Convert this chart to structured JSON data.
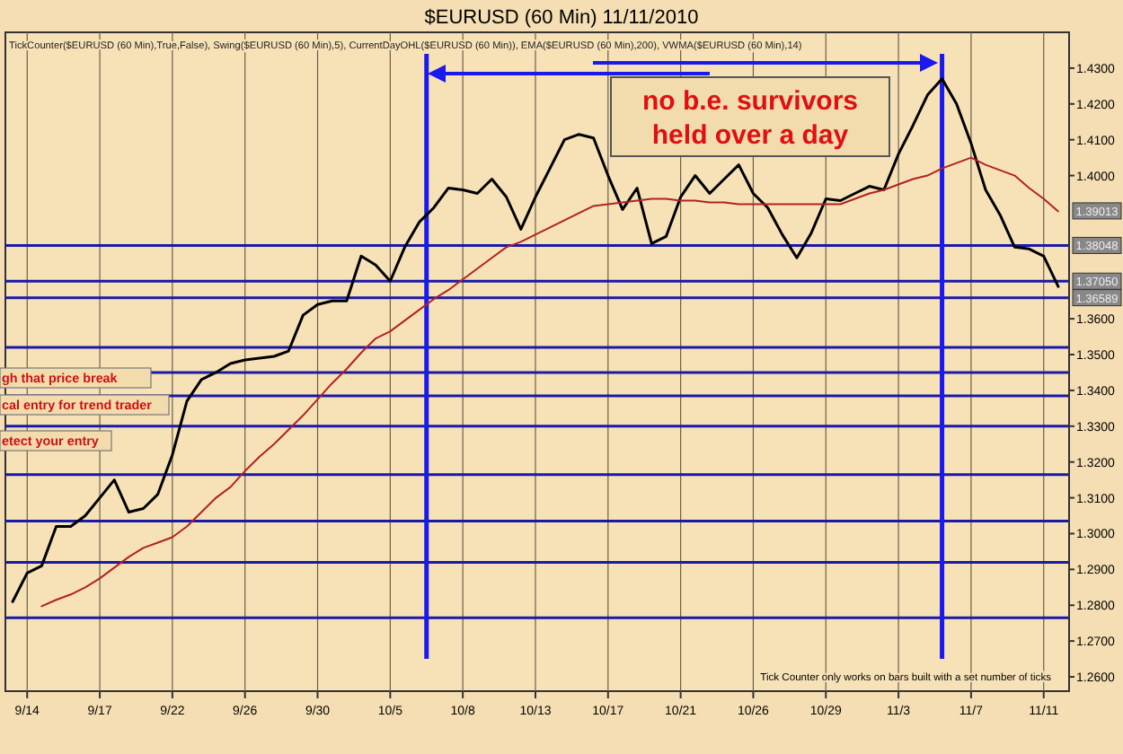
{
  "chart_data": {
    "type": "line",
    "title": "$EURUSD (60 Min)  11/11/2010",
    "subtitle": "TickCounter($EURUSD (60 Min),True,False), Swing($EURUSD (60 Min),5), CurrentDayOHL($EURUSD (60 Min)), EMA($EURUSD (60 Min),200), VWMA($EURUSD (60 Min),14)",
    "categories": [
      null,
      "9/14",
      null,
      null,
      null,
      null,
      "9/17",
      null,
      null,
      null,
      null,
      "9/22",
      null,
      null,
      null,
      null,
      "9/26",
      null,
      null,
      null,
      null,
      "9/30",
      null,
      null,
      null,
      null,
      "10/5",
      null,
      null,
      null,
      null,
      "10/8",
      null,
      null,
      null,
      null,
      "10/13",
      null,
      null,
      null,
      null,
      "10/17",
      null,
      null,
      null,
      null,
      "10/21",
      null,
      null,
      null,
      null,
      "10/26",
      null,
      null,
      null,
      null,
      "10/29",
      null,
      null,
      null,
      null,
      "11/3",
      null,
      null,
      null,
      null,
      "11/7",
      null,
      null,
      null,
      null,
      "11/11",
      null
    ],
    "series": [
      {
        "color": "#000000",
        "values": [
          1.281,
          1.289,
          1.291,
          1.302,
          1.302,
          1.305,
          1.31,
          1.315,
          1.306,
          1.307,
          1.311,
          1.322,
          1.337,
          1.343,
          1.345,
          1.3475,
          1.3485,
          1.349,
          1.3495,
          1.351,
          1.361,
          1.364,
          1.365,
          1.365,
          1.3775,
          1.375,
          1.3705,
          1.38,
          1.387,
          1.391,
          1.3965,
          1.396,
          1.395,
          1.399,
          1.394,
          1.385,
          1.394,
          1.402,
          1.41,
          1.4115,
          1.4105,
          1.4,
          1.3905,
          1.3965,
          1.381,
          1.383,
          1.394,
          1.4,
          1.395,
          1.399,
          1.403,
          1.395,
          1.391,
          1.3835,
          1.377,
          1.384,
          1.3935,
          1.393,
          1.395,
          1.397,
          1.396,
          1.406,
          1.414,
          1.4225,
          1.427,
          1.42,
          1.409,
          1.396,
          1.389,
          1.38,
          1.3795,
          1.3775,
          1.369
        ]
      },
      {
        "color": "#b22222",
        "values": [
          null,
          null,
          1.2797,
          1.2815,
          1.283,
          1.285,
          1.2875,
          1.2905,
          1.2935,
          1.296,
          1.2975,
          1.299,
          1.302,
          1.306,
          1.31,
          1.313,
          1.3175,
          1.3215,
          1.325,
          1.329,
          1.333,
          1.3375,
          1.342,
          1.346,
          1.3505,
          1.3545,
          1.3565,
          1.3595,
          1.3625,
          1.3655,
          1.368,
          1.371,
          1.374,
          1.377,
          1.38,
          1.3815,
          1.3835,
          1.3855,
          1.3875,
          1.3895,
          1.3915,
          1.392,
          1.3925,
          1.393,
          1.3935,
          1.3935,
          1.393,
          1.393,
          1.3925,
          1.3925,
          1.392,
          1.392,
          1.392,
          1.392,
          1.392,
          1.392,
          1.392,
          1.392,
          1.3935,
          1.395,
          1.396,
          1.3975,
          1.399,
          1.4,
          1.402,
          1.4035,
          1.405,
          1.403,
          1.4015,
          1.4,
          1.3965,
          1.3935,
          1.39
        ]
      }
    ],
    "ylim": [
      1.256,
      1.44
    ],
    "yticks": [
      {
        "value": 1.26,
        "label": "1.2600"
      },
      {
        "value": 1.27,
        "label": "1.2700"
      },
      {
        "value": 1.28,
        "label": "1.2800"
      },
      {
        "value": 1.29,
        "label": "1.2900"
      },
      {
        "value": 1.3,
        "label": "1.3000"
      },
      {
        "value": 1.31,
        "label": "1.3100"
      },
      {
        "value": 1.32,
        "label": "1.3200"
      },
      {
        "value": 1.33,
        "label": "1.3300"
      },
      {
        "value": 1.34,
        "label": "1.3400"
      },
      {
        "value": 1.35,
        "label": "1.3500"
      },
      {
        "value": 1.36,
        "label": "1.3600"
      },
      {
        "value": 1.4,
        "label": "1.4000"
      },
      {
        "value": 1.41,
        "label": "1.4100"
      },
      {
        "value": 1.42,
        "label": "1.4200"
      },
      {
        "value": 1.43,
        "label": "1.4300"
      }
    ],
    "ref_lines": [
      {
        "axis": "y",
        "value": 1.38048,
        "label": "1.38048",
        "color": "#1a1aa8"
      },
      {
        "axis": "y",
        "value": 1.3705,
        "label": "1.37050",
        "color": "#1a1aa8"
      },
      {
        "axis": "y",
        "value": 1.36589,
        "label": "1.36589",
        "color": "#1a1aa8"
      },
      {
        "axis": "y",
        "value": 1.352,
        "color": "#1a1aa8"
      },
      {
        "axis": "y",
        "value": 1.345,
        "color": "#1a1aa8"
      },
      {
        "axis": "y",
        "value": 1.3385,
        "color": "#1a1aa8"
      },
      {
        "axis": "y",
        "value": 1.33,
        "color": "#1a1aa8"
      },
      {
        "axis": "y",
        "value": 1.3165,
        "color": "#1a1aa8"
      },
      {
        "axis": "y",
        "value": 1.3035,
        "color": "#1a1aa8"
      },
      {
        "axis": "y",
        "value": 1.292,
        "color": "#1a1aa8"
      },
      {
        "axis": "y",
        "value": 1.2765,
        "color": "#1a1aa8"
      }
    ],
    "annotations": [
      {
        "text": "1.39013",
        "y": 1.39013
      },
      "no b.e. survivors held over a day",
      "gh that price break",
      "cal entry for trend trader",
      "etect your entry",
      "Tick Counter only works on bars built with a set number of ticks"
    ],
    "grid": "x"
  }
}
